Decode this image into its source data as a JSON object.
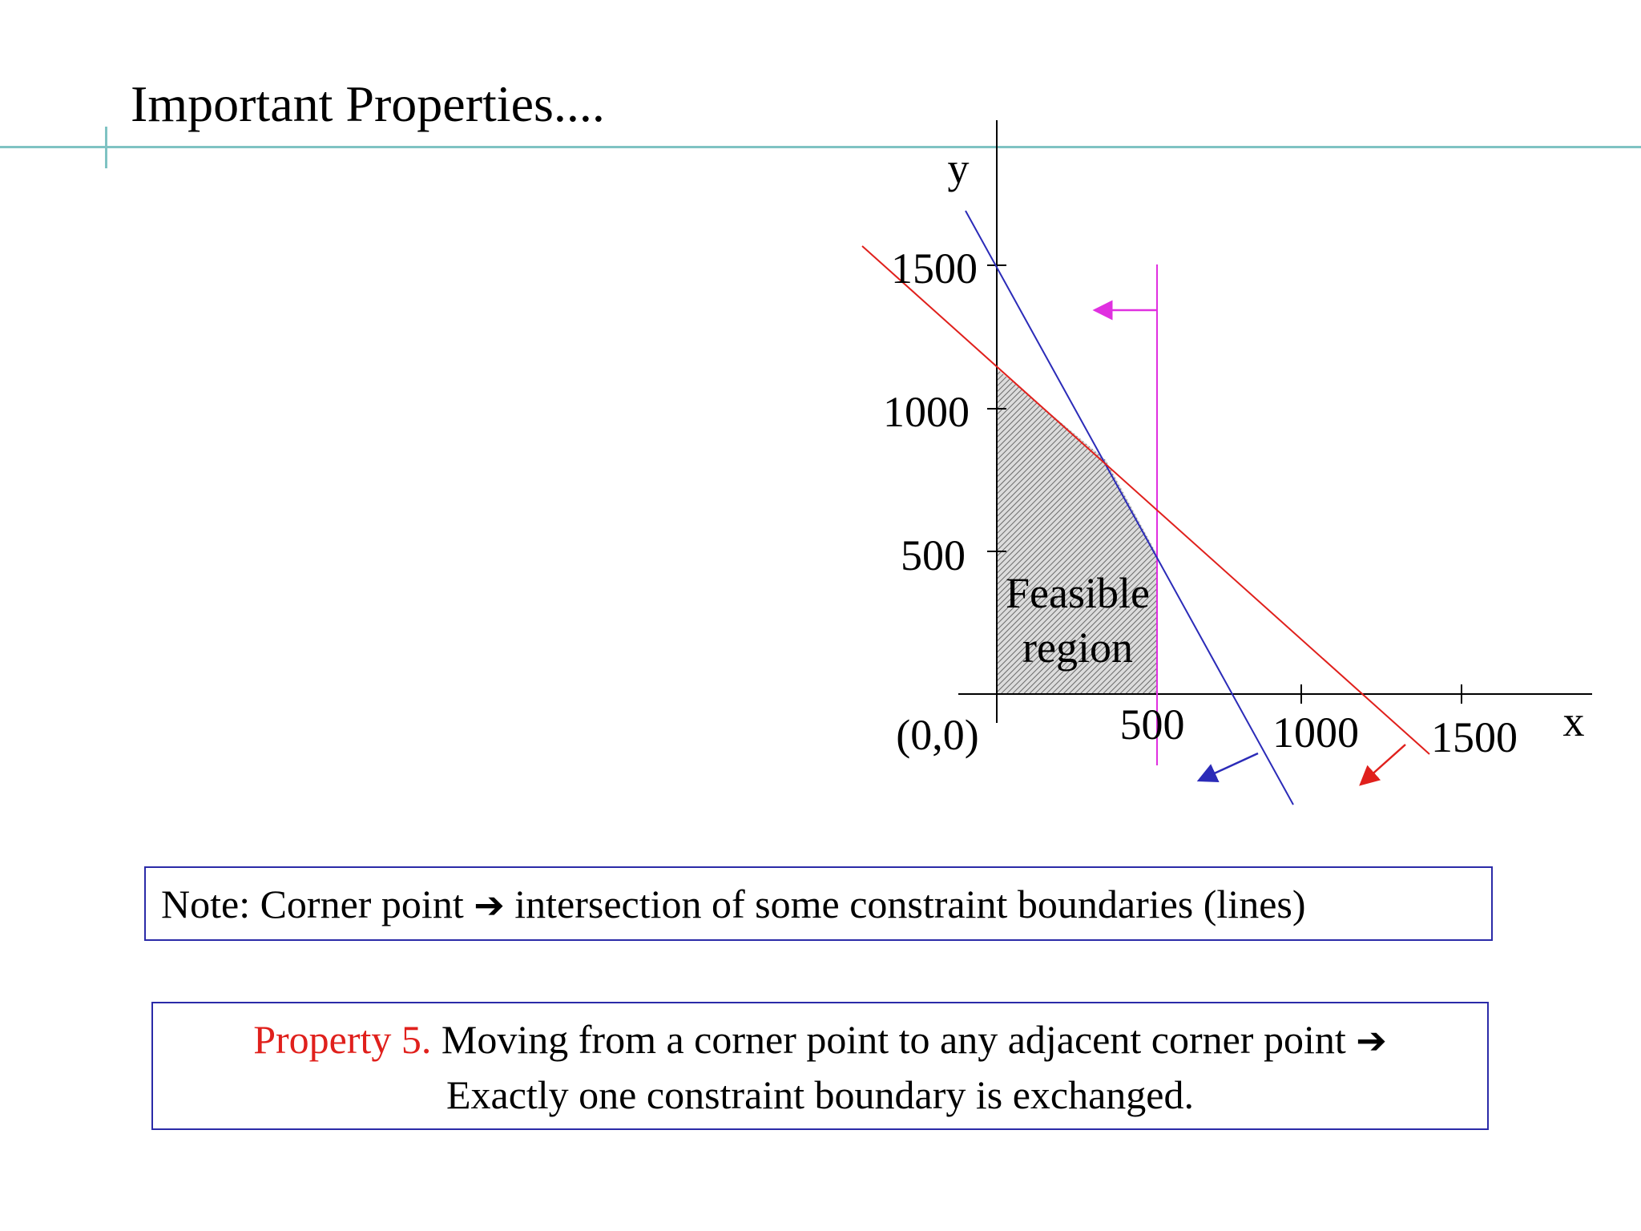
{
  "slide": {
    "title": "Important Properties...."
  },
  "colors": {
    "rule": "#7fc3c3",
    "red_line": "#e0201c",
    "blue_line": "#2b2bb8",
    "magenta_line": "#e030e0",
    "box_border": "#2b2ba8"
  },
  "diagram": {
    "axis_x_label": "x",
    "axis_y_label": "y",
    "origin_label": "(0,0)",
    "x_ticks": [
      "500",
      "1000",
      "1500"
    ],
    "y_ticks": [
      "500",
      "1000",
      "1500"
    ],
    "region_label_line1": "Feasible",
    "region_label_line2": "region"
  },
  "note": {
    "prefix": "Note: Corner point",
    "arrow": "➔",
    "suffix": "intersection of some constraint boundaries (lines)"
  },
  "property": {
    "label": "Property 5.",
    "line1": "Moving from a corner point to any adjacent corner point",
    "arrow": "➔",
    "line2": "Exactly one constraint boundary is exchanged."
  }
}
